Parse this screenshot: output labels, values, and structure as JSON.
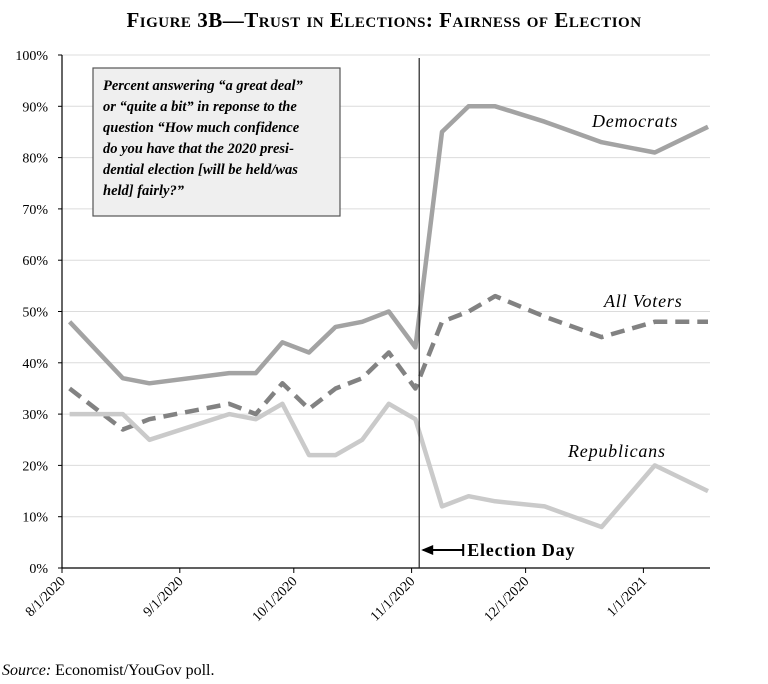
{
  "chart_data": {
    "type": "line",
    "title": "Figure 3B—Trust in Elections: Fairness of Election",
    "xlabel": "",
    "ylabel": "",
    "ylim": [
      0,
      100
    ],
    "y_ticks": [
      "0%",
      "10%",
      "20%",
      "30%",
      "40%",
      "50%",
      "60%",
      "70%",
      "80%",
      "90%",
      "100%"
    ],
    "x_ticks": [
      "8/1/2020",
      "9/1/2020",
      "10/1/2020",
      "11/1/2020",
      "12/1/2020",
      "1/1/2021"
    ],
    "grid": "horizontal",
    "annotation": [
      "Percent answering “a great deal”",
      "or “quite a bit” in reponse to the",
      "question “How much confidence",
      "do you have that the 2020 presi-",
      "dential election [will be held/was",
      "held] fairly?”"
    ],
    "event": {
      "label": "Election Day",
      "date": "11/3/2020"
    },
    "source_label": "Source:",
    "source_text": "Economist/YouGov poll.",
    "series": [
      {
        "name": "Democrats",
        "color": "#a3a3a3",
        "style": "solid",
        "x": [
          "8/3/2020",
          "8/17/2020",
          "8/24/2020",
          "9/14/2020",
          "9/21/2020",
          "9/28/2020",
          "10/5/2020",
          "10/12/2020",
          "10/19/2020",
          "10/26/2020",
          "11/2/2020",
          "11/9/2020",
          "11/16/2020",
          "11/23/2020",
          "12/6/2020",
          "12/21/2020",
          "1/4/2021",
          "1/18/2021"
        ],
        "values": [
          48,
          37,
          36,
          38,
          38,
          44,
          42,
          47,
          48,
          50,
          43,
          85,
          90,
          90,
          87,
          83,
          81,
          86
        ]
      },
      {
        "name": "All Voters",
        "color": "#828282",
        "style": "dashed",
        "x": [
          "8/3/2020",
          "8/17/2020",
          "8/24/2020",
          "9/14/2020",
          "9/21/2020",
          "9/28/2020",
          "10/5/2020",
          "10/12/2020",
          "10/19/2020",
          "10/26/2020",
          "11/2/2020",
          "11/9/2020",
          "11/16/2020",
          "11/23/2020",
          "12/6/2020",
          "12/21/2020",
          "1/4/2021",
          "1/18/2021"
        ],
        "values": [
          35,
          27,
          29,
          32,
          30,
          36,
          31,
          35,
          37,
          42,
          35,
          48,
          50,
          53,
          49,
          45,
          48,
          48
        ]
      },
      {
        "name": "Republicans",
        "color": "#cacaca",
        "style": "solid",
        "x": [
          "8/3/2020",
          "8/17/2020",
          "8/24/2020",
          "9/14/2020",
          "9/21/2020",
          "9/28/2020",
          "10/5/2020",
          "10/12/2020",
          "10/19/2020",
          "10/26/2020",
          "11/2/2020",
          "11/9/2020",
          "11/16/2020",
          "11/23/2020",
          "12/6/2020",
          "12/21/2020",
          "1/4/2021",
          "1/18/2021"
        ],
        "values": [
          30,
          30,
          25,
          30,
          29,
          32,
          22,
          22,
          25,
          32,
          29,
          12,
          14,
          13,
          12,
          8,
          20,
          15
        ]
      }
    ]
  }
}
